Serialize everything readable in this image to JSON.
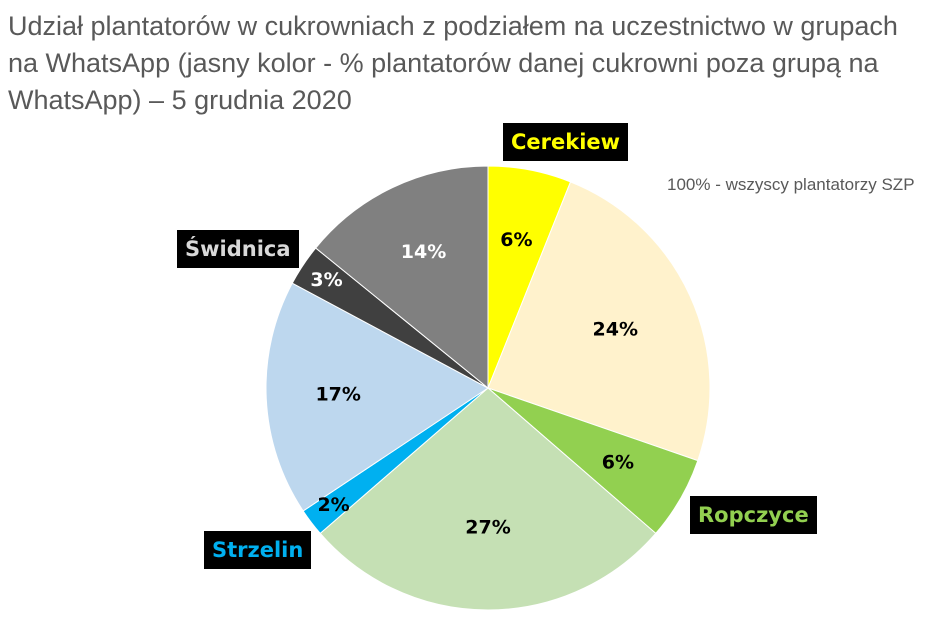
{
  "chart_data": {
    "type": "pie",
    "title": "Udział plantatorów w cukrowniach z podziałem na uczestnictwo w grupach na WhatsApp (jasny kolor - % plantatorów danej cukrowni poza grupą na WhatsApp) – 5 grudnia 2020",
    "annotation": "100% - wszyscy plantatorzy SZP",
    "slices": [
      {
        "label": "6%",
        "value": 6,
        "color": "#ffff00",
        "label_color": "#000000"
      },
      {
        "label": "24%",
        "value": 24,
        "color": "#fff2cc",
        "label_color": "#000000"
      },
      {
        "label": "6%",
        "value": 6,
        "color": "#92d050",
        "label_color": "#000000"
      },
      {
        "label": "27%",
        "value": 27,
        "color": "#c5e0b4",
        "label_color": "#000000"
      },
      {
        "label": "2%",
        "value": 2,
        "color": "#00b0f0",
        "label_color": "#000000"
      },
      {
        "label": "17%",
        "value": 17,
        "color": "#bdd7ee",
        "label_color": "#000000"
      },
      {
        "label": "3%",
        "value": 3,
        "color": "#404040",
        "label_color": "#ffffff"
      },
      {
        "label": "14%",
        "value": 14,
        "color": "#808080",
        "label_color": "#ffffff"
      }
    ],
    "callouts": [
      {
        "id": "cerekiew",
        "text": "Cerekiew",
        "color": "#ffff00"
      },
      {
        "id": "ropczyce",
        "text": "Ropczyce",
        "color": "#92d050"
      },
      {
        "id": "strzelin",
        "text": "Strzelin",
        "color": "#00b0f0"
      },
      {
        "id": "swidnica",
        "text": "Świdnica",
        "color": "#d9d9d9"
      }
    ]
  }
}
